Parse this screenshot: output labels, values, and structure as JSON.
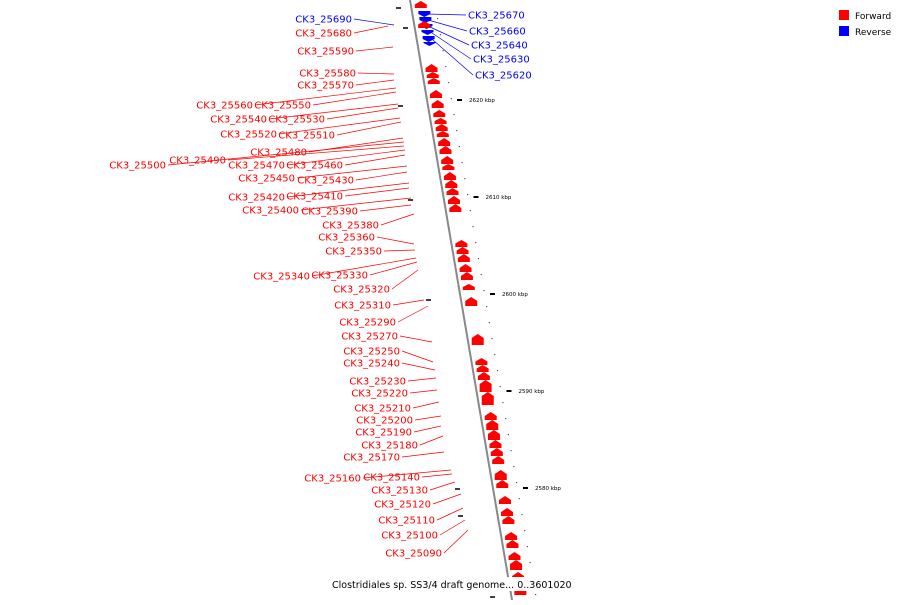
{
  "legend": {
    "items": [
      {
        "label": "Forward",
        "color": "#ff0000"
      },
      {
        "label": "Reverse",
        "color": "#0000ff"
      }
    ]
  },
  "caption": "Clostridiales sp. SS3/4 draft genome... 0..3601020",
  "axis_ticks": [
    "2620 kbp",
    "2610 kbp",
    "2600 kbp",
    "2590 kbp",
    "2580 kbp"
  ],
  "colors": {
    "forward": "#ff0000",
    "reverse": "#0000ff",
    "backbone": "#888888"
  },
  "features": {
    "reverse": [
      "CK3_25690",
      "CK3_25670",
      "CK3_25660",
      "CK3_25640",
      "CK3_25630",
      "CK3_25620"
    ],
    "forward": [
      "CK3_25680",
      "CK3_25590",
      "CK3_25580",
      "CK3_25570",
      "CK3_25560",
      "CK3_25550",
      "CK3_25540",
      "CK3_25530",
      "CK3_25520",
      "CK3_25510",
      "CK3_25480",
      "CK3_25500",
      "CK3_25490",
      "CK3_25470",
      "CK3_25460",
      "CK3_25450",
      "CK3_25430",
      "CK3_25420",
      "CK3_25410",
      "CK3_25400",
      "CK3_25390",
      "CK3_25380",
      "CK3_25360",
      "CK3_25350",
      "CK3_25340",
      "CK3_25330",
      "CK3_25320",
      "CK3_25310",
      "CK3_25290",
      "CK3_25270",
      "CK3_25250",
      "CK3_25240",
      "CK3_25230",
      "CK3_25220",
      "CK3_25210",
      "CK3_25200",
      "CK3_25190",
      "CK3_25180",
      "CK3_25170",
      "CK3_25160",
      "CK3_25140",
      "CK3_25130",
      "CK3_25120",
      "CK3_25110",
      "CK3_25100",
      "CK3_25090"
    ]
  }
}
